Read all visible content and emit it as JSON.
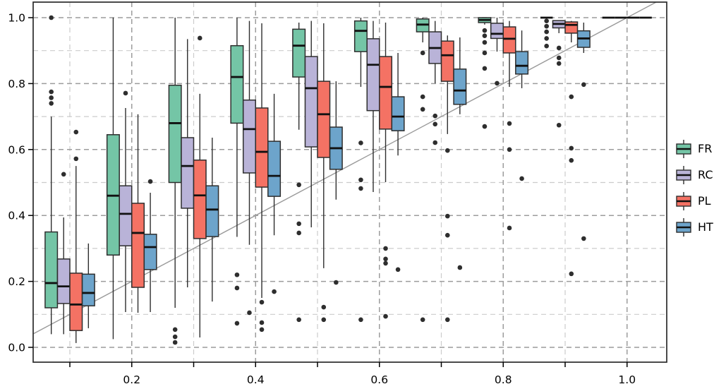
{
  "figure": {
    "kind": "grouped boxplot figure with identity reference line",
    "background": "#ffffff"
  },
  "legend": {
    "items": [
      {
        "label": "FR",
        "series": 0
      },
      {
        "label": "RC",
        "series": 1
      },
      {
        "label": "PL",
        "series": 2
      },
      {
        "label": "HT",
        "series": 3
      }
    ]
  },
  "chart_data": {
    "type": "grouped_boxplot",
    "title": "",
    "xlabel": "",
    "ylabel": "",
    "x_axis": {
      "range": [
        0.042,
        1.063
      ],
      "ticks": [
        {
          "v": 0.1,
          "label": ""
        },
        {
          "v": 0.2,
          "label": "0.2"
        },
        {
          "v": 0.3,
          "label": ""
        },
        {
          "v": 0.4,
          "label": "0.4"
        },
        {
          "v": 0.5,
          "label": ""
        },
        {
          "v": 0.6,
          "label": "0.6"
        },
        {
          "v": 0.7,
          "label": ""
        },
        {
          "v": 0.8,
          "label": "0.8"
        },
        {
          "v": 0.9,
          "label": ""
        },
        {
          "v": 1.0,
          "label": "1.0"
        }
      ]
    },
    "y_axis": {
      "range": [
        -0.045,
        1.036
      ],
      "ticks": [
        {
          "v": 0.0,
          "label": "0.0"
        },
        {
          "v": 0.2,
          "label": "0.2"
        },
        {
          "v": 0.4,
          "label": "0.4"
        },
        {
          "v": 0.6,
          "label": "0.6"
        },
        {
          "v": 0.8,
          "label": "0.8"
        },
        {
          "v": 1.0,
          "label": "1.0"
        }
      ]
    },
    "grid": {
      "style": "dashed",
      "major_color": "#9c9c9c",
      "minor_color": "#cccccc",
      "v_major": [
        0.2,
        0.4,
        0.6,
        0.8,
        1.0
      ],
      "v_minor": [
        0.1,
        0.3,
        0.5,
        0.7,
        0.9
      ],
      "h_major": [
        0.0,
        0.2,
        0.4,
        0.6,
        0.8,
        1.0
      ],
      "h_minor": [
        0.1,
        0.3,
        0.5,
        0.7,
        0.9
      ]
    },
    "reference_line": {
      "kind": "identity y=x",
      "color": "#9a9a9a"
    },
    "box_stroke": "#2e2e2e",
    "median_color": "#111111",
    "outlier_color": "#2e2e2e",
    "groups": [
      0.1,
      0.2,
      0.3,
      0.4,
      0.5,
      0.6,
      0.7,
      0.8,
      0.9,
      1.0
    ],
    "series": [
      {
        "name": "FR",
        "color": "#74C5A6",
        "boxes": [
          {
            "x": 0.1,
            "lo": 0.04,
            "q1": 0.12,
            "med": 0.195,
            "q3": 0.35,
            "hi": 0.7,
            "out": [
              0.74,
              0.757,
              0.775,
              1.0
            ]
          },
          {
            "x": 0.2,
            "lo": 0.025,
            "q1": 0.28,
            "med": 0.46,
            "q3": 0.645,
            "hi": 1.0,
            "out": []
          },
          {
            "x": 0.3,
            "lo": 0.12,
            "q1": 0.5,
            "med": 0.68,
            "q3": 0.795,
            "hi": 1.0,
            "out": [
              0.054,
              0.032,
              0.015
            ]
          },
          {
            "x": 0.4,
            "lo": 0.335,
            "q1": 0.68,
            "med": 0.82,
            "q3": 0.915,
            "hi": 1.0,
            "out": [
              0.22,
              0.18,
              0.073
            ]
          },
          {
            "x": 0.5,
            "lo": 0.66,
            "q1": 0.82,
            "med": 0.915,
            "q3": 0.965,
            "hi": 0.985,
            "out": [
              0.493,
              0.375,
              0.347,
              0.084
            ]
          },
          {
            "x": 0.6,
            "lo": 0.79,
            "q1": 0.897,
            "med": 0.96,
            "q3": 0.99,
            "hi": 1.0,
            "out": [
              0.62,
              0.508,
              0.482,
              0.084
            ]
          },
          {
            "x": 0.7,
            "lo": 0.925,
            "q1": 0.957,
            "med": 0.979,
            "q3": 0.996,
            "hi": 1.0,
            "out": [
              0.893,
              0.76,
              0.722,
              0.084
            ]
          },
          {
            "x": 0.8,
            "lo": 0.979,
            "q1": 0.985,
            "med": 0.993,
            "q3": 1.0,
            "hi": 1.0,
            "out": [
              0.961,
              0.945,
              0.925,
              0.893,
              0.846,
              0.67
            ]
          },
          {
            "x": 0.9,
            "lo": 1.0,
            "q1": 1.0,
            "med": 1.0,
            "q3": 1.0,
            "hi": 1.0,
            "out": [
              0.99,
              0.974,
              0.957,
              0.937,
              0.914
            ]
          },
          {
            "x": 1.0,
            "lo": 1.0,
            "q1": 1.0,
            "med": 1.0,
            "q3": 1.0,
            "hi": 1.0,
            "out": []
          }
        ]
      },
      {
        "name": "RC",
        "color": "#B9B3D8",
        "boxes": [
          {
            "x": 0.1,
            "lo": 0.04,
            "q1": 0.133,
            "med": 0.185,
            "q3": 0.268,
            "hi": 0.394,
            "out": [
              0.525
            ]
          },
          {
            "x": 0.2,
            "lo": 0.107,
            "q1": 0.308,
            "med": 0.405,
            "q3": 0.49,
            "hi": 0.726,
            "out": [
              0.771
            ]
          },
          {
            "x": 0.3,
            "lo": 0.182,
            "q1": 0.422,
            "med": 0.55,
            "q3": 0.636,
            "hi": 0.935,
            "out": []
          },
          {
            "x": 0.4,
            "lo": 0.311,
            "q1": 0.529,
            "med": 0.662,
            "q3": 0.75,
            "hi": 0.99,
            "out": [
              0.105
            ]
          },
          {
            "x": 0.5,
            "lo": 0.364,
            "q1": 0.608,
            "med": 0.786,
            "q3": 0.882,
            "hi": 0.99,
            "out": []
          },
          {
            "x": 0.6,
            "lo": 0.471,
            "q1": 0.718,
            "med": 0.857,
            "q3": 0.936,
            "hi": 0.99,
            "out": []
          },
          {
            "x": 0.7,
            "lo": 0.801,
            "q1": 0.861,
            "med": 0.908,
            "q3": 0.957,
            "hi": 0.99,
            "out": [
              0.702,
              0.677,
              0.621
            ]
          },
          {
            "x": 0.8,
            "lo": 0.897,
            "q1": 0.937,
            "med": 0.951,
            "q3": 0.983,
            "hi": 1.0,
            "out": [
              0.801
            ]
          },
          {
            "x": 0.9,
            "lo": 0.953,
            "q1": 0.969,
            "med": 0.981,
            "q3": 0.991,
            "hi": 0.991,
            "out": [
              0.908,
              0.878,
              0.861,
              0.674
            ]
          },
          {
            "x": 1.0,
            "lo": 1.0,
            "q1": 1.0,
            "med": 1.0,
            "q3": 1.0,
            "hi": 1.0,
            "out": []
          }
        ]
      },
      {
        "name": "PL",
        "color": "#F47264",
        "boxes": [
          {
            "x": 0.1,
            "lo": 0.013,
            "q1": 0.051,
            "med": 0.13,
            "q3": 0.225,
            "hi": 0.55,
            "out": [
              0.653,
              0.572
            ]
          },
          {
            "x": 0.2,
            "lo": 0.105,
            "q1": 0.182,
            "med": 0.347,
            "q3": 0.437,
            "hi": 0.707,
            "out": []
          },
          {
            "x": 0.3,
            "lo": 0.03,
            "q1": 0.33,
            "med": 0.461,
            "q3": 0.568,
            "hi": 0.769,
            "out": [
              0.938
            ]
          },
          {
            "x": 0.4,
            "lo": 0.15,
            "q1": 0.486,
            "med": 0.593,
            "q3": 0.726,
            "hi": 0.983,
            "out": [
              0.137,
              0.075,
              0.054
            ]
          },
          {
            "x": 0.5,
            "lo": 0.24,
            "q1": 0.576,
            "med": 0.707,
            "q3": 0.807,
            "hi": 0.983,
            "out": [
              0.122,
              0.084
            ]
          },
          {
            "x": 0.6,
            "lo": 0.501,
            "q1": 0.662,
            "med": 0.79,
            "q3": 0.882,
            "hi": 0.985,
            "out": [
              0.3,
              0.268,
              0.255,
              0.094
            ]
          },
          {
            "x": 0.7,
            "lo": 0.647,
            "q1": 0.807,
            "med": 0.886,
            "q3": 0.929,
            "hi": 0.946,
            "out": [
              0.597,
              0.398,
              0.34,
              0.084
            ]
          },
          {
            "x": 0.8,
            "lo": 0.79,
            "q1": 0.893,
            "med": 0.936,
            "q3": 0.972,
            "hi": 0.99,
            "out": [
              0.679,
              0.6,
              0.362
            ]
          },
          {
            "x": 0.9,
            "lo": 0.925,
            "q1": 0.953,
            "med": 0.978,
            "q3": 0.987,
            "hi": 0.99,
            "out": [
              0.76,
              0.604,
              0.567,
              0.223
            ]
          },
          {
            "x": 1.0,
            "lo": 1.0,
            "q1": 1.0,
            "med": 1.0,
            "q3": 1.0,
            "hi": 1.0,
            "out": []
          }
        ]
      },
      {
        "name": "HT",
        "color": "#6DA4CB",
        "boxes": [
          {
            "x": 0.1,
            "lo": 0.058,
            "q1": 0.126,
            "med": 0.165,
            "q3": 0.222,
            "hi": 0.315,
            "out": []
          },
          {
            "x": 0.2,
            "lo": 0.107,
            "q1": 0.236,
            "med": 0.304,
            "q3": 0.343,
            "hi": 0.469,
            "out": [
              0.503
            ]
          },
          {
            "x": 0.3,
            "lo": 0.139,
            "q1": 0.336,
            "med": 0.418,
            "q3": 0.49,
            "hi": 0.636,
            "out": []
          },
          {
            "x": 0.4,
            "lo": 0.34,
            "q1": 0.458,
            "med": 0.52,
            "q3": 0.625,
            "hi": 0.769,
            "out": [
              0.169
            ]
          },
          {
            "x": 0.5,
            "lo": 0.448,
            "q1": 0.54,
            "med": 0.604,
            "q3": 0.668,
            "hi": 0.807,
            "out": [
              0.197
            ]
          },
          {
            "x": 0.6,
            "lo": 0.582,
            "q1": 0.657,
            "med": 0.7,
            "q3": 0.76,
            "hi": 0.893,
            "out": [
              0.236
            ]
          },
          {
            "x": 0.7,
            "lo": 0.707,
            "q1": 0.737,
            "med": 0.779,
            "q3": 0.844,
            "hi": 0.94,
            "out": [
              0.242
            ]
          },
          {
            "x": 0.8,
            "lo": 0.786,
            "q1": 0.829,
            "med": 0.854,
            "q3": 0.897,
            "hi": 0.961,
            "out": [
              0.512
            ]
          },
          {
            "x": 0.9,
            "lo": 0.893,
            "q1": 0.91,
            "med": 0.937,
            "q3": 0.96,
            "hi": 0.985,
            "out": [
              0.797,
              0.33
            ]
          },
          {
            "x": 1.0,
            "lo": 1.0,
            "q1": 1.0,
            "med": 1.0,
            "q3": 1.0,
            "hi": 1.0,
            "out": []
          }
        ]
      }
    ]
  }
}
